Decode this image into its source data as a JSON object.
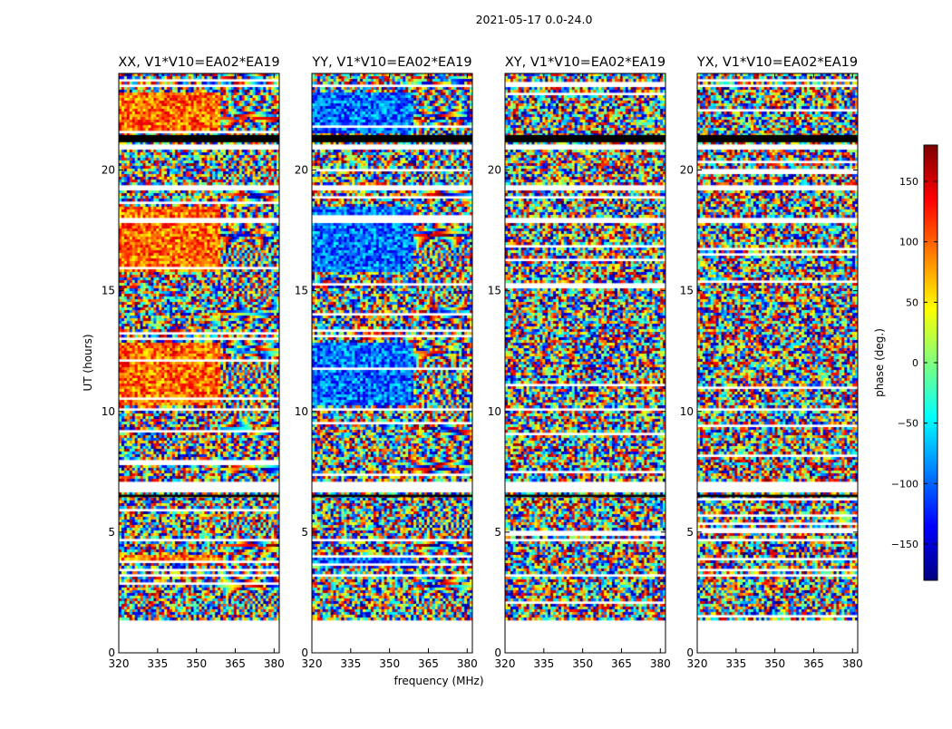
{
  "chart_data": {
    "type": "heatmap",
    "title": "2021-05-17 0.0-24.0",
    "panels": [
      {
        "title": "XX, V1*V10=EA02*EA19",
        "mode": "amp"
      },
      {
        "title": "YY, V1*V10=EA02*EA19",
        "mode": "ampcool"
      },
      {
        "title": "XY, V1*V10=EA02*EA19",
        "mode": "noise"
      },
      {
        "title": "YX, V1*V10=EA02*EA19",
        "mode": "noise"
      }
    ],
    "xlabel": "frequency (MHz)",
    "ylabel": "UT (hours)",
    "xlim": [
      320,
      382
    ],
    "ylim": [
      0,
      24
    ],
    "xticks": [
      320,
      335,
      350,
      365,
      380
    ],
    "xtick_labels": [
      "320",
      "335",
      "350",
      "365",
      "380"
    ],
    "yticks": [
      0,
      5,
      10,
      15,
      20
    ],
    "ytick_labels": [
      "0",
      "5",
      "10",
      "15",
      "20"
    ],
    "data_range_hours": [
      1.4,
      24
    ],
    "blank_bands_hours": [
      [
        6.6,
        7.1
      ],
      [
        20.8,
        21.1
      ],
      [
        19.2,
        19.4
      ],
      [
        17.8,
        18.0
      ],
      [
        14.6,
        14.7
      ],
      [
        10.0,
        10.15
      ],
      [
        4.6,
        4.7
      ],
      [
        23.4,
        23.5
      ],
      [
        3.2,
        3.3
      ]
    ],
    "black_bands_hours": [
      [
        21.15,
        21.45
      ],
      [
        6.45,
        6.55
      ]
    ],
    "colorbar": {
      "label": "phase (deg.)",
      "range": [
        -180,
        180
      ],
      "ticks": [
        -150,
        -100,
        -50,
        0,
        50,
        100,
        150
      ],
      "tick_labels": [
        "−150",
        "−100",
        "−50",
        "0",
        "50",
        "100",
        "150"
      ]
    }
  }
}
